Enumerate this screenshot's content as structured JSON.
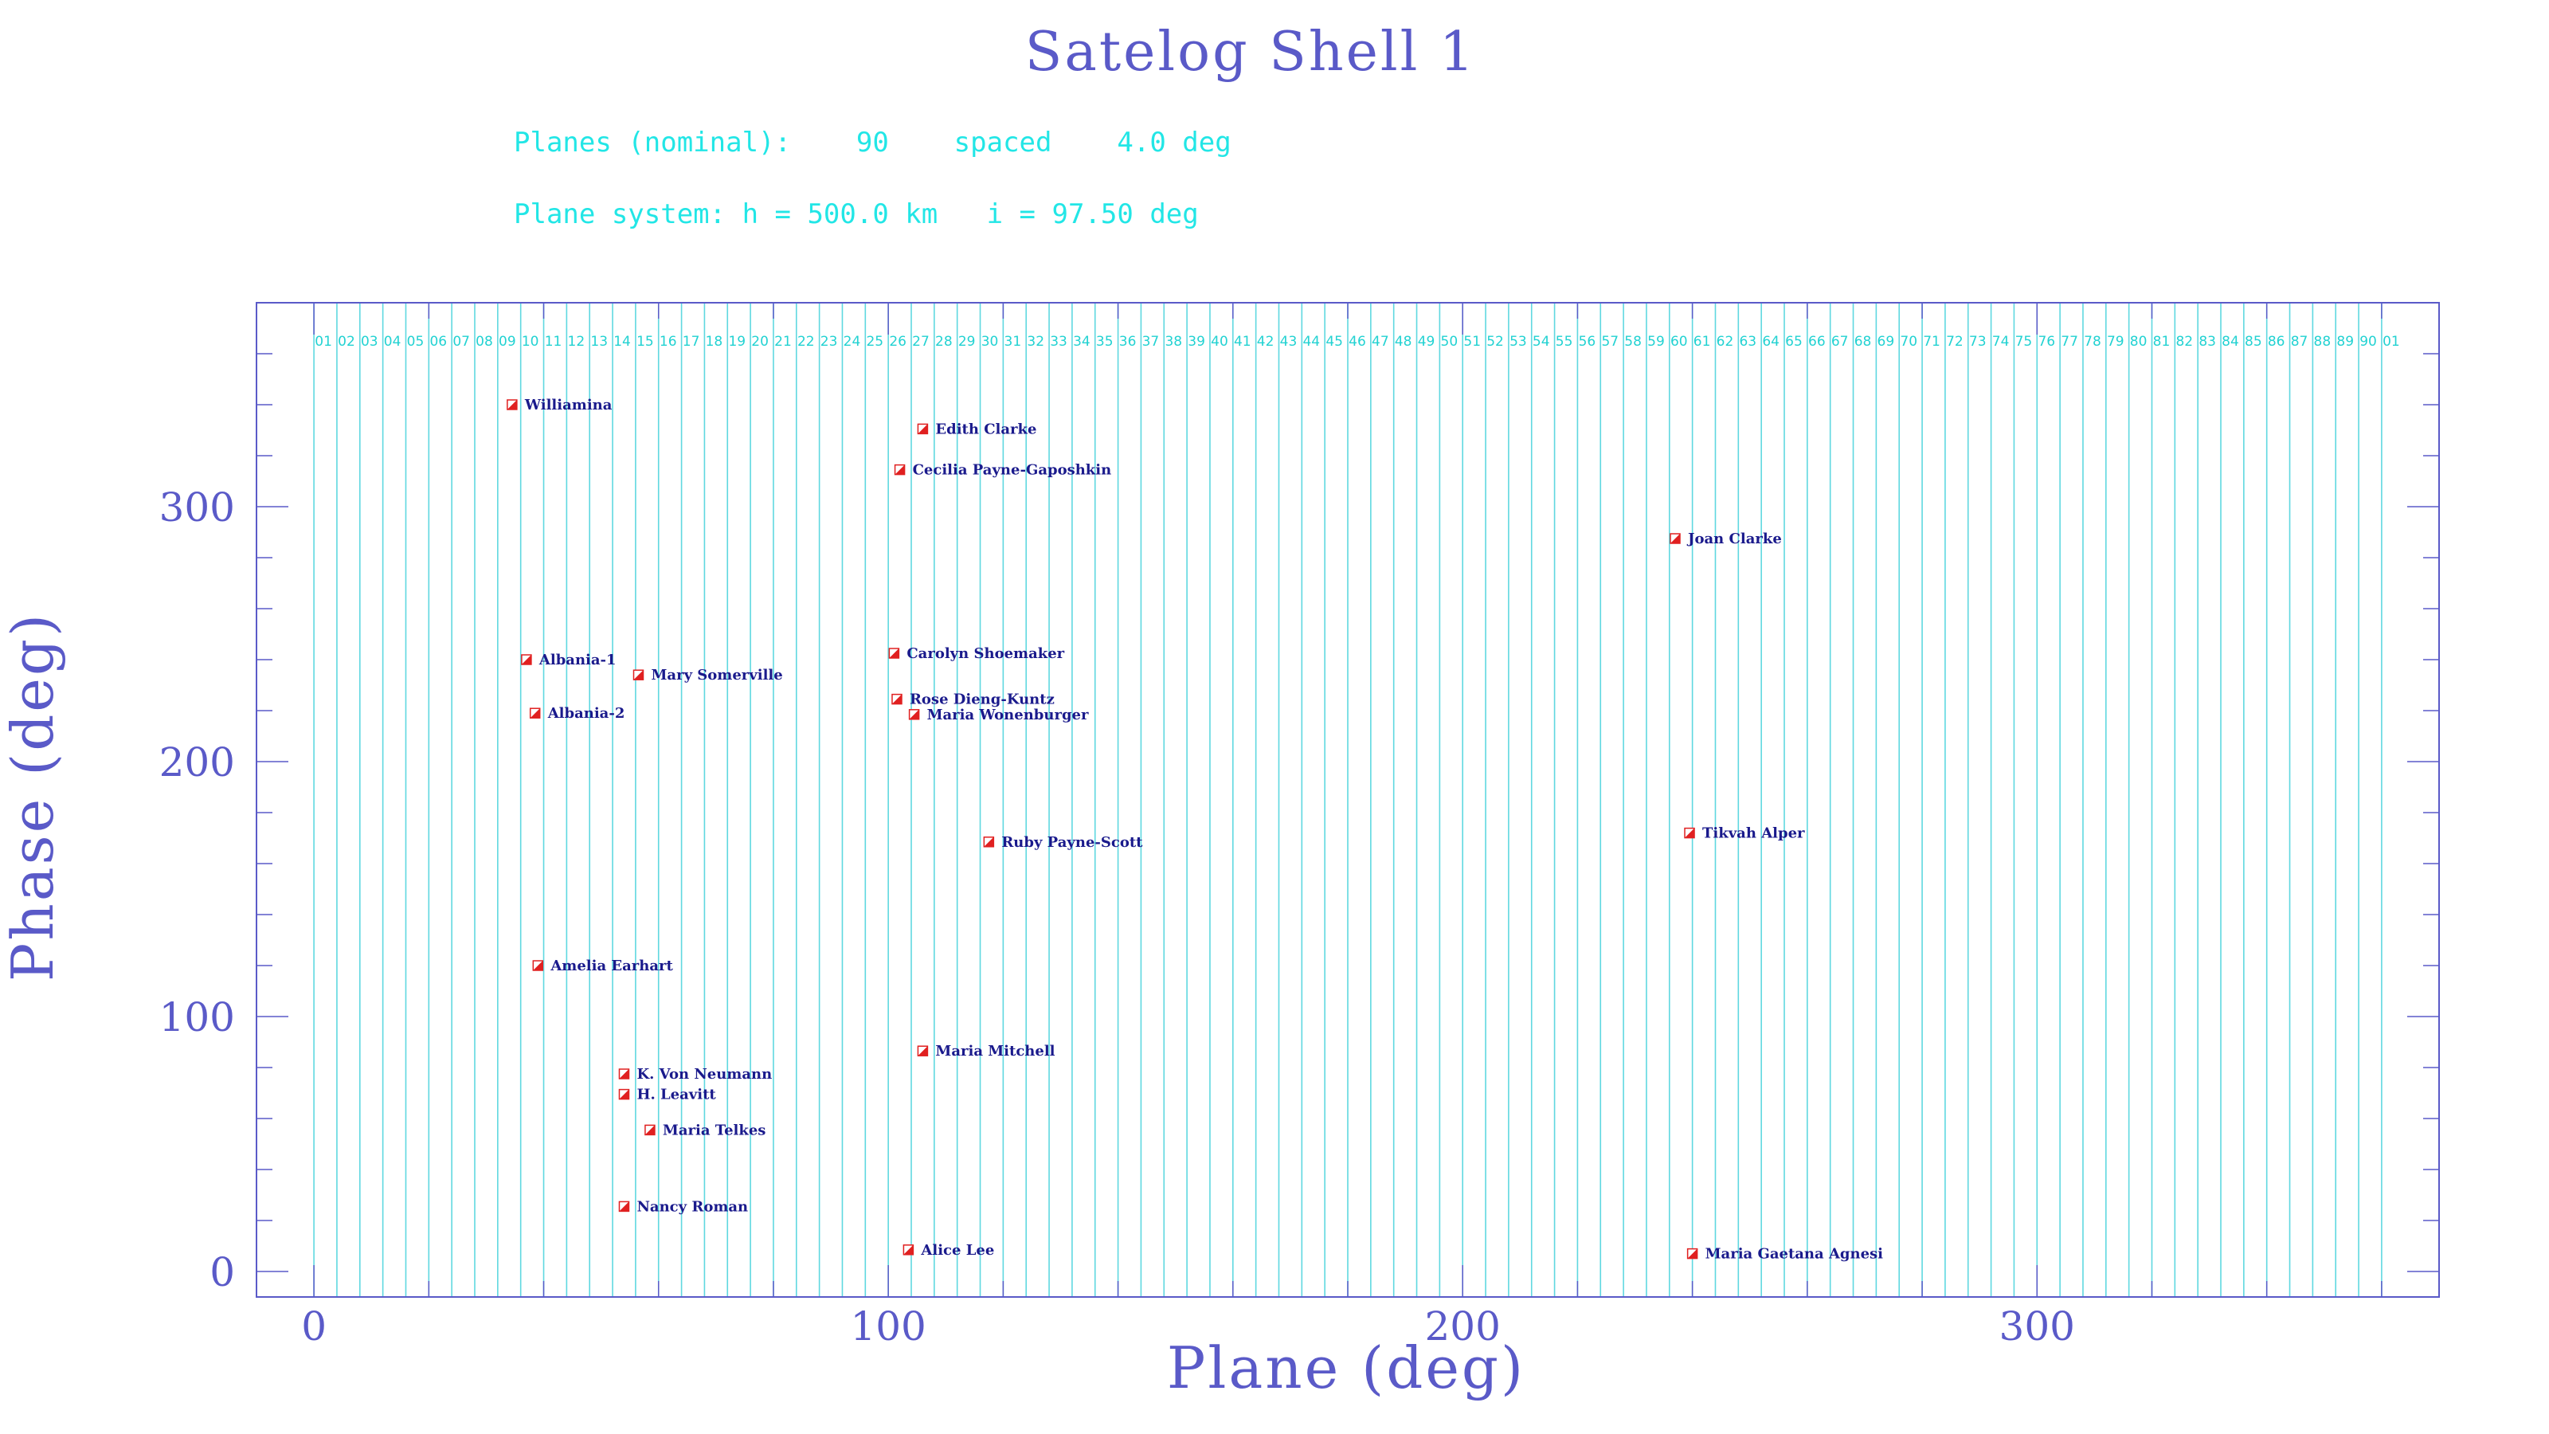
{
  "header": {
    "title": "Satelog Shell 1",
    "planes_line": "Planes (nominal):    90    spaced    4.0 deg",
    "system_line": "Plane system: h = 500.0 km   i = 97.50 deg"
  },
  "colors": {
    "title": "#5a5ac8",
    "info": "#22e6e6",
    "plane_lines": "#5fd8e0",
    "frame": "#5a5ac8",
    "marker": "#e02020",
    "sat_label": "#1a1a8c"
  },
  "chart_data": {
    "type": "scatter",
    "title": "Satelog Shell 1",
    "xlabel": "Plane (deg)",
    "ylabel": "Phase (deg)",
    "xlim": [
      -10,
      370
    ],
    "ylim": [
      -10,
      380
    ],
    "xticks": [
      0,
      100,
      200,
      300
    ],
    "yticks": [
      0,
      100,
      200,
      300
    ],
    "grid": false,
    "plane_spacing": 4.0,
    "plane_labels": [
      "01",
      "02",
      "03",
      "04",
      "05",
      "06",
      "07",
      "08",
      "09",
      "10",
      "11",
      "12",
      "13",
      "14",
      "15",
      "16",
      "17",
      "18",
      "19",
      "20",
      "21",
      "22",
      "23",
      "24",
      "25",
      "26",
      "27",
      "28",
      "29",
      "30",
      "31",
      "32",
      "33",
      "34",
      "35",
      "36",
      "37",
      "38",
      "39",
      "40",
      "41",
      "42",
      "43",
      "44",
      "45",
      "46",
      "47",
      "48",
      "49",
      "50",
      "51",
      "52",
      "53",
      "54",
      "55",
      "56",
      "57",
      "58",
      "59",
      "60",
      "61",
      "62",
      "63",
      "64",
      "65",
      "66",
      "67",
      "68",
      "69",
      "70",
      "71",
      "72",
      "73",
      "74",
      "75",
      "76",
      "77",
      "78",
      "79",
      "80",
      "81",
      "82",
      "83",
      "84",
      "85",
      "86",
      "87",
      "88",
      "89",
      "90",
      "01"
    ],
    "points": [
      {
        "name": "Williamina",
        "x": 34.5,
        "y": 340
      },
      {
        "name": "Edith Clarke",
        "x": 106,
        "y": 330.5
      },
      {
        "name": "Cecilia Payne-Gaposhkin",
        "x": 102,
        "y": 314.5
      },
      {
        "name": "Joan Clarke",
        "x": 237,
        "y": 287.5
      },
      {
        "name": "Albania-1",
        "x": 37,
        "y": 240
      },
      {
        "name": "Mary Somerville",
        "x": 56.5,
        "y": 234
      },
      {
        "name": "Carolyn Shoemaker",
        "x": 101,
        "y": 242.5
      },
      {
        "name": "Rose Dieng-Kuntz",
        "x": 101.5,
        "y": 224.5
      },
      {
        "name": "Maria Wonenburger",
        "x": 104.5,
        "y": 218.5
      },
      {
        "name": "Albania-2",
        "x": 38.5,
        "y": 219
      },
      {
        "name": "Ruby Payne-Scott",
        "x": 117.5,
        "y": 168.5
      },
      {
        "name": "Tikvah Alper",
        "x": 239.5,
        "y": 172
      },
      {
        "name": "Amelia Earhart",
        "x": 39,
        "y": 120
      },
      {
        "name": "Maria Mitchell",
        "x": 106,
        "y": 86.5
      },
      {
        "name": "K. Von Neumann",
        "x": 54,
        "y": 77.5
      },
      {
        "name": "H. Leavitt",
        "x": 54,
        "y": 69.5
      },
      {
        "name": "Maria Telkes",
        "x": 58.5,
        "y": 55.5
      },
      {
        "name": "Nancy Roman",
        "x": 54,
        "y": 25.5
      },
      {
        "name": "Alice Lee",
        "x": 103.5,
        "y": 8.5
      },
      {
        "name": "Maria Gaetana Agnesi",
        "x": 240,
        "y": 7
      }
    ]
  }
}
